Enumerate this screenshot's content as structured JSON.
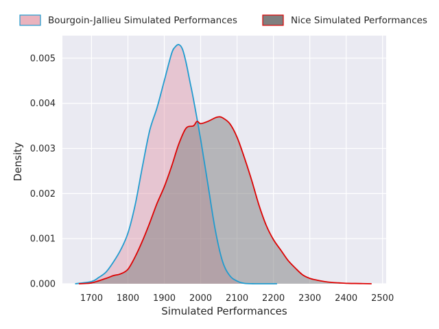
{
  "chart_data": {
    "type": "area",
    "xlabel": "Simulated Performances",
    "ylabel": "Density",
    "xlim": [
      1620,
      2510
    ],
    "ylim": [
      0,
      0.0055
    ],
    "xticks": [
      "1700",
      "1800",
      "1900",
      "2000",
      "2100",
      "2200",
      "2300",
      "2400",
      "2500"
    ],
    "yticks": [
      "0.000",
      "0.001",
      "0.002",
      "0.003",
      "0.004",
      "0.005"
    ],
    "grid": true,
    "legend_position": "top, outside plot",
    "style": {
      "background": "#eaeaf2",
      "grid_color": "#ffffff"
    },
    "series": [
      {
        "name": "Bourgoin-Jallieu Simulated Performances",
        "line_color": "#1f9bcf",
        "fill_color": "#e39aa8",
        "fill_opacity": 0.45,
        "x": [
          1655,
          1700,
          1720,
          1740,
          1760,
          1780,
          1800,
          1820,
          1840,
          1860,
          1880,
          1900,
          1920,
          1930,
          1940,
          1950,
          1960,
          1970,
          1980,
          2000,
          2020,
          2040,
          2060,
          2080,
          2100,
          2120,
          2150,
          2180,
          2210
        ],
        "y": [
          0.0,
          5e-05,
          0.00014,
          0.00026,
          0.00048,
          0.00075,
          0.00112,
          0.00175,
          0.0026,
          0.0034,
          0.0039,
          0.0045,
          0.0051,
          0.00525,
          0.0053,
          0.0052,
          0.0049,
          0.0045,
          0.0041,
          0.0032,
          0.0022,
          0.0012,
          0.0005,
          0.00018,
          6e-05,
          1e-05,
          0.0,
          0.0,
          0.0
        ]
      },
      {
        "name": "Nice Simulated Performances",
        "line_color": "#dd0000",
        "fill_color": "#7f7f7f",
        "fill_opacity": 0.5,
        "x": [
          1665,
          1700,
          1740,
          1760,
          1780,
          1800,
          1820,
          1840,
          1860,
          1880,
          1900,
          1920,
          1940,
          1960,
          1980,
          1990,
          2000,
          2020,
          2040,
          2050,
          2060,
          2080,
          2100,
          2120,
          2140,
          2160,
          2180,
          2200,
          2220,
          2240,
          2260,
          2280,
          2300,
          2320,
          2340,
          2360,
          2380,
          2400,
          2440,
          2470
        ],
        "y": [
          0.0,
          2e-05,
          0.00012,
          0.00018,
          0.00022,
          0.00032,
          0.0006,
          0.00095,
          0.00135,
          0.00178,
          0.00215,
          0.0026,
          0.0031,
          0.00345,
          0.0035,
          0.0036,
          0.00355,
          0.0036,
          0.00368,
          0.0037,
          0.00368,
          0.00355,
          0.00325,
          0.0028,
          0.0023,
          0.00175,
          0.0013,
          0.00098,
          0.00075,
          0.00052,
          0.00035,
          0.0002,
          0.00012,
          8e-05,
          5e-05,
          3e-05,
          2e-05,
          1e-05,
          5e-06,
          0.0
        ]
      }
    ]
  }
}
